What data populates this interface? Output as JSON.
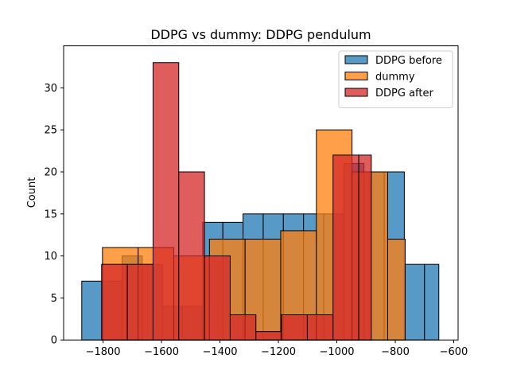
{
  "chart_data": {
    "type": "histogram",
    "title": "DDPG vs dummy: DDPG pendulum",
    "xlabel": "",
    "ylabel": "Count",
    "xlim": [
      -1935,
      -585
    ],
    "ylim": [
      0,
      35
    ],
    "xticks": [
      -1800,
      -1600,
      -1400,
      -1200,
      -1000,
      -800,
      -600
    ],
    "xtick_labels": [
      "−1800",
      "−1600",
      "−1400",
      "−1200",
      "−1000",
      "−800",
      "−600"
    ],
    "yticks": [
      0,
      5,
      10,
      15,
      20,
      25,
      30
    ],
    "ytick_labels": [
      "0",
      "5",
      "10",
      "15",
      "20",
      "25",
      "30"
    ],
    "legend_position": "top-right",
    "grid": false,
    "series": [
      {
        "name": "DDPG before",
        "color": "#1f77b4",
        "alpha": 0.75,
        "bins": [
          {
            "x0": -1873,
            "x1": -1804,
            "count": 7
          },
          {
            "x0": -1804,
            "x1": -1735,
            "count": 7
          },
          {
            "x0": -1735,
            "x1": -1666,
            "count": 10
          },
          {
            "x0": -1666,
            "x1": -1597,
            "count": 9
          },
          {
            "x0": -1597,
            "x1": -1528,
            "count": 4
          },
          {
            "x0": -1528,
            "x1": -1459,
            "count": 4
          },
          {
            "x0": -1459,
            "x1": -1390,
            "count": 14
          },
          {
            "x0": -1390,
            "x1": -1321,
            "count": 14
          },
          {
            "x0": -1321,
            "x1": -1252,
            "count": 15
          },
          {
            "x0": -1252,
            "x1": -1183,
            "count": 15
          },
          {
            "x0": -1183,
            "x1": -1114,
            "count": 15
          },
          {
            "x0": -1114,
            "x1": -1045,
            "count": 15
          },
          {
            "x0": -1045,
            "x1": -976,
            "count": 15
          },
          {
            "x0": -976,
            "x1": -907,
            "count": 21
          },
          {
            "x0": -907,
            "x1": -838,
            "count": 20
          },
          {
            "x0": -838,
            "x1": -769,
            "count": 20
          },
          {
            "x0": -769,
            "x1": -700,
            "count": 9
          },
          {
            "x0": -700,
            "x1": -651,
            "count": 9
          }
        ]
      },
      {
        "name": "dummy",
        "color": "#ff7f0e",
        "alpha": 0.75,
        "bins": [
          {
            "x0": -1802,
            "x1": -1680,
            "count": 11
          },
          {
            "x0": -1680,
            "x1": -1558,
            "count": 11
          },
          {
            "x0": -1558,
            "x1": -1436,
            "count": 10
          },
          {
            "x0": -1436,
            "x1": -1314,
            "count": 12
          },
          {
            "x0": -1314,
            "x1": -1192,
            "count": 12
          },
          {
            "x0": -1192,
            "x1": -1070,
            "count": 13
          },
          {
            "x0": -1070,
            "x1": -948,
            "count": 25
          },
          {
            "x0": -948,
            "x1": -826,
            "count": 20
          },
          {
            "x0": -826,
            "x1": -766,
            "count": 12
          }
        ]
      },
      {
        "name": "DDPG after",
        "color": "#d62728",
        "alpha": 0.75,
        "bins": [
          {
            "x0": -1805,
            "x1": -1717,
            "count": 9
          },
          {
            "x0": -1717,
            "x1": -1629,
            "count": 9
          },
          {
            "x0": -1629,
            "x1": -1541,
            "count": 33
          },
          {
            "x0": -1541,
            "x1": -1453,
            "count": 20
          },
          {
            "x0": -1453,
            "x1": -1365,
            "count": 10
          },
          {
            "x0": -1365,
            "x1": -1277,
            "count": 3
          },
          {
            "x0": -1277,
            "x1": -1189,
            "count": 1
          },
          {
            "x0": -1189,
            "x1": -1101,
            "count": 3
          },
          {
            "x0": -1101,
            "x1": -1013,
            "count": 3
          },
          {
            "x0": -1013,
            "x1": -925,
            "count": 22
          },
          {
            "x0": -925,
            "x1": -882,
            "count": 22
          }
        ]
      }
    ]
  }
}
